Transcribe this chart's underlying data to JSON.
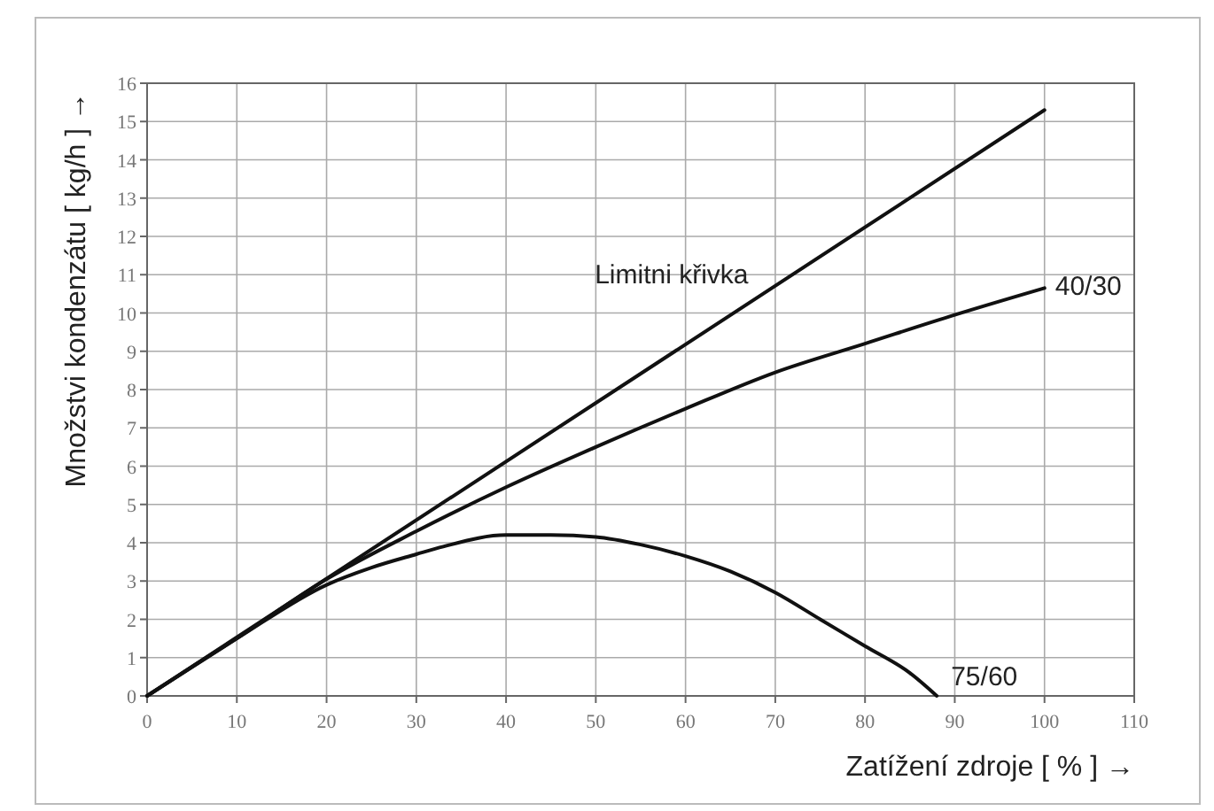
{
  "chart_data": {
    "type": "line",
    "xlabel": "Zatížení zdroje [ % ] →",
    "ylabel": "Množstvi kondenzátu [ kg/h ] →",
    "xlim": [
      0,
      110
    ],
    "xticks": [
      0,
      10,
      20,
      30,
      40,
      50,
      60,
      70,
      80,
      90,
      100,
      110
    ],
    "ylim": [
      0,
      16
    ],
    "yticks": [
      0,
      1,
      2,
      3,
      4,
      5,
      6,
      7,
      8,
      9,
      10,
      11,
      12,
      13,
      14,
      15,
      16
    ],
    "grid": true,
    "series": [
      {
        "name": "Limitni křivka",
        "color": "#111111",
        "x": [
          0,
          100
        ],
        "values": [
          0,
          15.3
        ]
      },
      {
        "name": "40/30",
        "color": "#111111",
        "x": [
          0,
          10,
          20,
          30,
          40,
          50,
          60,
          70,
          80,
          90,
          100
        ],
        "values": [
          0,
          1.5,
          3.05,
          4.3,
          5.45,
          6.5,
          7.5,
          8.45,
          9.2,
          9.95,
          10.65
        ]
      },
      {
        "name": "75/60",
        "color": "#111111",
        "x": [
          0,
          10,
          20,
          25,
          30,
          33,
          40,
          45,
          50,
          55,
          60,
          65,
          70,
          75,
          80,
          85,
          88
        ],
        "values": [
          0,
          1.5,
          2.9,
          3.35,
          3.7,
          3.9,
          4.2,
          4.2,
          4.15,
          3.95,
          3.65,
          3.25,
          2.7,
          2.0,
          1.3,
          0.6,
          0
        ]
      }
    ]
  }
}
